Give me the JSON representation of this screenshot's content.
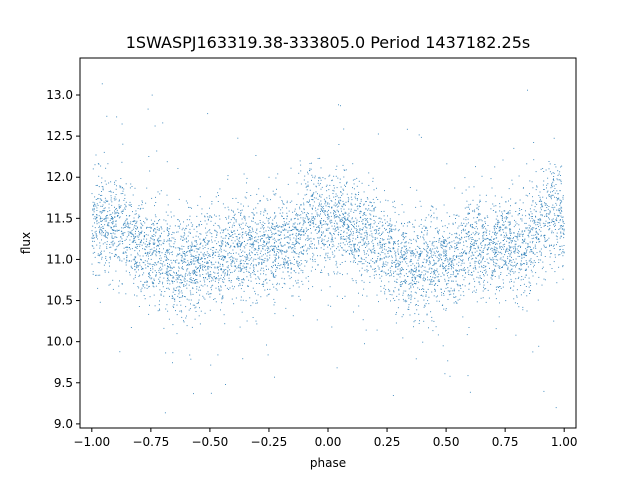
{
  "chart_data": {
    "type": "scatter",
    "title": "1SWASPJ163319.38-333805.0 Period 1437182.25s",
    "xlabel": "phase",
    "ylabel": "flux",
    "xlim": [
      -1.05,
      1.05
    ],
    "ylim": [
      8.95,
      13.45
    ],
    "x_ticks": [
      -1.0,
      -0.75,
      -0.5,
      -0.25,
      0.0,
      0.25,
      0.5,
      0.75,
      1.0
    ],
    "x_tick_labels": [
      "−1.00",
      "−0.75",
      "−0.50",
      "−0.25",
      "0.00",
      "0.25",
      "0.50",
      "0.75",
      "1.00"
    ],
    "y_ticks": [
      9.0,
      9.5,
      10.0,
      10.5,
      11.0,
      11.5,
      12.0,
      12.5,
      13.0
    ],
    "y_tick_labels": [
      "9.0",
      "9.5",
      "10.0",
      "10.5",
      "11.0",
      "11.5",
      "12.0",
      "12.5",
      "13.0"
    ],
    "grid": false,
    "legend": "none",
    "marker_color": "#1f77b4",
    "profile": {
      "phase": [
        -1.0,
        -0.95,
        -0.9,
        -0.85,
        -0.8,
        -0.75,
        -0.7,
        -0.65,
        -0.6,
        -0.55,
        -0.5,
        -0.45,
        -0.4,
        -0.35,
        -0.3,
        -0.25,
        -0.2,
        -0.15,
        -0.1,
        -0.05,
        0.0,
        0.05,
        0.1,
        0.15,
        0.2,
        0.25,
        0.3,
        0.35,
        0.4,
        0.45,
        0.5,
        0.55,
        0.6,
        0.65,
        0.7,
        0.75,
        0.8,
        0.85,
        0.9,
        0.95,
        1.0
      ],
      "flux": [
        11.45,
        11.5,
        11.35,
        11.3,
        11.2,
        11.1,
        11.0,
        10.9,
        10.95,
        10.95,
        11.0,
        11.0,
        11.2,
        11.1,
        11.15,
        11.2,
        11.15,
        11.2,
        11.4,
        11.55,
        11.45,
        11.5,
        11.35,
        11.3,
        11.2,
        11.1,
        11.0,
        10.9,
        10.95,
        10.95,
        11.0,
        11.0,
        11.2,
        11.1,
        11.15,
        11.2,
        11.15,
        11.2,
        11.4,
        11.55,
        11.45
      ],
      "scatter_sd": 0.3
    }
  }
}
